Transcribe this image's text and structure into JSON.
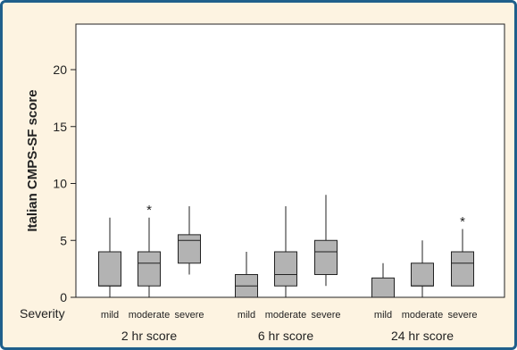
{
  "chart_data": {
    "type": "boxplot",
    "ylabel": "Italian CMPS-SF score",
    "row_label": "Severity",
    "ylim": [
      0,
      24
    ],
    "yticks": [
      0,
      5,
      10,
      15,
      20
    ],
    "colors": {
      "box_fill": "#b3b3b3",
      "stroke": "#222222",
      "plot_bg": "#ffffff",
      "frame": "#1f5f8b",
      "page_bg": "#fdf3e1"
    },
    "groups": [
      {
        "label": "2 hr score",
        "boxes": [
          {
            "category": "mild",
            "min": 0,
            "q1": 1,
            "median": 1,
            "q3": 4,
            "max": 7,
            "outliers": []
          },
          {
            "category": "moderate",
            "min": 0,
            "q1": 1,
            "median": 3,
            "q3": 4,
            "max": 7,
            "outliers": [
              8
            ]
          },
          {
            "category": "severe",
            "min": 2,
            "q1": 3,
            "median": 5,
            "q3": 5.5,
            "max": 8,
            "outliers": []
          }
        ]
      },
      {
        "label": "6 hr score",
        "boxes": [
          {
            "category": "mild",
            "min": 0,
            "q1": 0,
            "median": 1,
            "q3": 2,
            "max": 4,
            "outliers": []
          },
          {
            "category": "moderate",
            "min": 0,
            "q1": 1,
            "median": 2,
            "q3": 4,
            "max": 8,
            "outliers": []
          },
          {
            "category": "severe",
            "min": 1,
            "q1": 2,
            "median": 4,
            "q3": 5,
            "max": 9,
            "outliers": []
          }
        ]
      },
      {
        "label": "24 hr score",
        "boxes": [
          {
            "category": "mild",
            "min": 0,
            "q1": 0,
            "median": 0,
            "q3": 1.7,
            "max": 3,
            "outliers": []
          },
          {
            "category": "moderate",
            "min": 0,
            "q1": 1,
            "median": 1,
            "q3": 3,
            "max": 5,
            "outliers": []
          },
          {
            "category": "severe",
            "min": 1,
            "q1": 1,
            "median": 3,
            "q3": 4,
            "max": 6,
            "outliers": [
              7
            ]
          }
        ]
      }
    ]
  }
}
